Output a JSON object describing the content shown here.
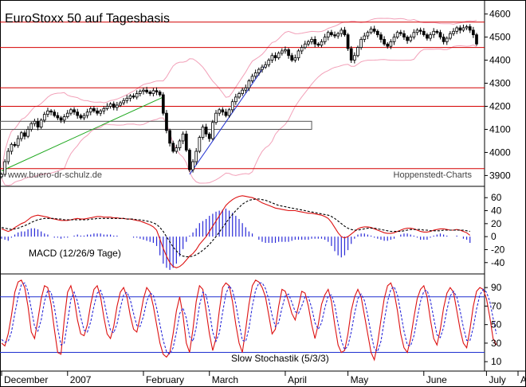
{
  "chart_data": [
    {
      "type": "candlestick",
      "title": "EuroStoxx 50 auf Tagesbasis",
      "watermark_left": "www.buero-dr-schulz.de",
      "watermark_right": "Hoppenstedt-Charts",
      "ylim": [
        3860,
        4640
      ],
      "yticks": [
        3900,
        4000,
        4100,
        4200,
        4300,
        4400,
        4500,
        4600
      ],
      "horizontal_lines": [
        3930,
        4200,
        4280,
        4455,
        4565
      ],
      "zone": {
        "low": 4100,
        "high": 4135
      },
      "trendlines": [
        {
          "color": "#1fa81f",
          "from": {
            "i": 0,
            "y": 3920
          },
          "to": {
            "i": 49,
            "y": 4240
          }
        },
        {
          "color": "#1f2fd0",
          "from": {
            "i": 57,
            "y": 3905
          },
          "to": {
            "i": 80,
            "y": 4380
          }
        }
      ],
      "bollinger_color": "#f2a0b8",
      "closes": [
        3905,
        3960,
        4005,
        4035,
        4030,
        4060,
        4085,
        4070,
        4100,
        4125,
        4135,
        4110,
        4140,
        4165,
        4180,
        4175,
        4160,
        4150,
        4140,
        4155,
        4170,
        4185,
        4175,
        4160,
        4150,
        4160,
        4175,
        4190,
        4180,
        4170,
        4180,
        4190,
        4200,
        4210,
        4195,
        4205,
        4215,
        4225,
        4235,
        4245,
        4240,
        4255,
        4265,
        4270,
        4262,
        4255,
        4268,
        4262,
        4250,
        4170,
        4095,
        4040,
        4005,
        4020,
        4050,
        4080,
        4010,
        3925,
        3960,
        4005,
        4065,
        4110,
        4080,
        4060,
        4130,
        4170,
        4185,
        4175,
        4160,
        4185,
        4220,
        4240,
        4255,
        4270,
        4280,
        4310,
        4330,
        4345,
        4360,
        4370,
        4380,
        4400,
        4420,
        4410,
        4430,
        4440,
        4445,
        4420,
        4400,
        4410,
        4440,
        4455,
        4470,
        4480,
        4490,
        4470,
        4465,
        4480,
        4500,
        4520,
        4510,
        4505,
        4515,
        4530,
        4510,
        4450,
        4400,
        4420,
        4455,
        4490,
        4505,
        4520,
        4535,
        4525,
        4510,
        4490,
        4470,
        4460,
        4480,
        4500,
        4520,
        4515,
        4500,
        4485,
        4500,
        4520,
        4530,
        4525,
        4510,
        4495,
        4510,
        4525,
        4520,
        4500,
        4480,
        4495,
        4515,
        4525,
        4540,
        4530,
        4540,
        4545,
        4530,
        4510,
        4470
      ]
    },
    {
      "type": "line",
      "label": "MACD (12/26/9 Tage)",
      "ylim": [
        -55,
        75
      ],
      "yticks": [
        60,
        40,
        20,
        0,
        -20,
        -40
      ],
      "series": [
        {
          "name": "MACD",
          "color": "#dd1111",
          "values": [
            12,
            10,
            8,
            10,
            14,
            17,
            20,
            22,
            26,
            30,
            32,
            33,
            32,
            31,
            30,
            28,
            27,
            26,
            25,
            25,
            25,
            26,
            27,
            28,
            27,
            27,
            28,
            29,
            30,
            31,
            31,
            30,
            30,
            30,
            29,
            29,
            28,
            28,
            27,
            27,
            26,
            25,
            24,
            22,
            20,
            18,
            15,
            10,
            -4,
            -18,
            -30,
            -40,
            -46,
            -48,
            -46,
            -42,
            -36,
            -30,
            -26,
            -20,
            -12,
            -6,
            0,
            8,
            16,
            24,
            32,
            40,
            48,
            53,
            57,
            60,
            62,
            63,
            62,
            61,
            60,
            58,
            55,
            52,
            50,
            48,
            46,
            44,
            43,
            42,
            41,
            40,
            40,
            40,
            39,
            38,
            37,
            36,
            36,
            35,
            34,
            33,
            31,
            28,
            22,
            14,
            6,
            0,
            -2,
            0,
            4,
            8,
            12,
            14,
            15,
            15,
            14,
            12,
            10,
            8,
            6,
            5,
            5,
            6,
            8,
            10,
            12,
            13,
            13,
            12,
            10,
            8,
            7,
            7,
            8,
            10,
            11,
            12,
            12,
            11,
            10,
            10,
            11,
            10,
            8,
            6,
            2
          ]
        },
        {
          "name": "Signal",
          "color": "#000000",
          "dashed": true,
          "values": [
            14,
            13,
            12,
            11,
            12,
            13,
            15,
            17,
            19,
            22,
            24,
            26,
            27,
            28,
            28,
            28,
            28,
            27,
            27,
            26,
            26,
            26,
            26,
            26,
            26,
            26,
            26,
            27,
            27,
            28,
            28,
            28,
            28,
            28,
            28,
            28,
            28,
            28,
            27,
            27,
            27,
            26,
            26,
            25,
            24,
            23,
            21,
            19,
            14,
            8,
            0,
            -8,
            -16,
            -22,
            -27,
            -30,
            -31,
            -31,
            -30,
            -28,
            -25,
            -21,
            -17,
            -12,
            -6,
            0,
            7,
            14,
            21,
            28,
            34,
            40,
            45,
            50,
            53,
            56,
            57,
            58,
            58,
            57,
            56,
            54,
            52,
            50,
            48,
            47,
            46,
            45,
            44,
            43,
            42,
            41,
            40,
            39,
            38,
            37,
            36,
            35,
            34,
            33,
            31,
            28,
            24,
            20,
            16,
            13,
            11,
            10,
            10,
            11,
            12,
            13,
            13,
            13,
            12,
            11,
            10,
            9,
            8,
            8,
            8,
            8,
            9,
            10,
            11,
            11,
            11,
            11,
            10,
            10,
            9,
            9,
            9,
            9,
            10,
            10,
            10,
            10,
            10,
            10,
            10,
            9,
            8
          ]
        }
      ]
    },
    {
      "type": "line",
      "label": "Slow Stochastik (5/3/3)",
      "ylim": [
        5,
        103
      ],
      "yticks": [
        90,
        70,
        50,
        30,
        10
      ],
      "levels": [
        80,
        20
      ],
      "series": [
        {
          "name": "%K",
          "color": "#dd1111",
          "values": [
            30,
            27,
            40,
            60,
            85,
            96,
            98,
            90,
            70,
            42,
            35,
            55,
            78,
            92,
            90,
            72,
            45,
            20,
            18,
            55,
            85,
            92,
            78,
            55,
            40,
            38,
            50,
            72,
            88,
            92,
            80,
            58,
            40,
            35,
            48,
            70,
            85,
            90,
            80,
            60,
            45,
            42,
            58,
            78,
            90,
            85,
            70,
            50,
            30,
            18,
            15,
            20,
            40,
            65,
            80,
            60,
            30,
            20,
            45,
            75,
            92,
            88,
            65,
            40,
            22,
            35,
            65,
            90,
            95,
            92,
            75,
            50,
            30,
            20,
            45,
            72,
            92,
            98,
            96,
            90,
            80,
            60,
            40,
            45,
            70,
            88,
            86,
            75,
            62,
            55,
            70,
            86,
            84,
            70,
            50,
            35,
            50,
            72,
            82,
            88,
            75,
            50,
            28,
            20,
            22,
            40,
            65,
            80,
            88,
            80,
            60,
            40,
            20,
            12,
            30,
            55,
            78,
            92,
            95,
            85,
            65,
            40,
            25,
            20,
            35,
            58,
            78,
            88,
            92,
            80,
            55,
            35,
            28,
            45,
            68,
            84,
            90,
            85,
            65,
            45,
            30,
            25,
            45,
            70,
            86,
            90,
            88,
            78,
            58,
            35,
            28
          ]
        },
        {
          "name": "%D",
          "color": "#2a2ad8",
          "dashed": true,
          "values": [
            34,
            31,
            32,
            42,
            62,
            80,
            93,
            95,
            86,
            67,
            48,
            43,
            55,
            75,
            87,
            85,
            69,
            46,
            28,
            30,
            53,
            77,
            85,
            75,
            58,
            44,
            42,
            53,
            70,
            84,
            87,
            77,
            59,
            44,
            41,
            51,
            68,
            82,
            85,
            77,
            62,
            49,
            48,
            59,
            75,
            84,
            82,
            68,
            50,
            33,
            21,
            18,
            25,
            42,
            62,
            68,
            57,
            37,
            32,
            47,
            71,
            85,
            82,
            64,
            42,
            32,
            41,
            63,
            83,
            92,
            87,
            72,
            52,
            33,
            32,
            46,
            70,
            87,
            95,
            95,
            89,
            77,
            60,
            48,
            52,
            68,
            81,
            83,
            74,
            64,
            62,
            70,
            80,
            80,
            68,
            52,
            45,
            52,
            68,
            81,
            82,
            71,
            51,
            33,
            23,
            27,
            42,
            62,
            78,
            83,
            76,
            60,
            40,
            24,
            21,
            32,
            54,
            75,
            88,
            91,
            82,
            63,
            43,
            28,
            27,
            38,
            57,
            75,
            86,
            87,
            76,
            57,
            39,
            36,
            47,
            66,
            81,
            86,
            80,
            65,
            47,
            33,
            33,
            47,
            67,
            82,
            88,
            85,
            75,
            57,
            40
          ]
        }
      ]
    },
    {
      "type": "axis",
      "xticks": [
        {
          "i": 0,
          "label": "December"
        },
        {
          "i": 20,
          "label": "2007"
        },
        {
          "i": 43,
          "label": "February"
        },
        {
          "i": 63,
          "label": "March"
        },
        {
          "i": 86,
          "label": "April"
        },
        {
          "i": 105,
          "label": "May"
        },
        {
          "i": 128,
          "label": "June"
        },
        {
          "i": 147,
          "label": "July"
        },
        {
          "i": 169,
          "label": "A"
        }
      ]
    }
  ]
}
